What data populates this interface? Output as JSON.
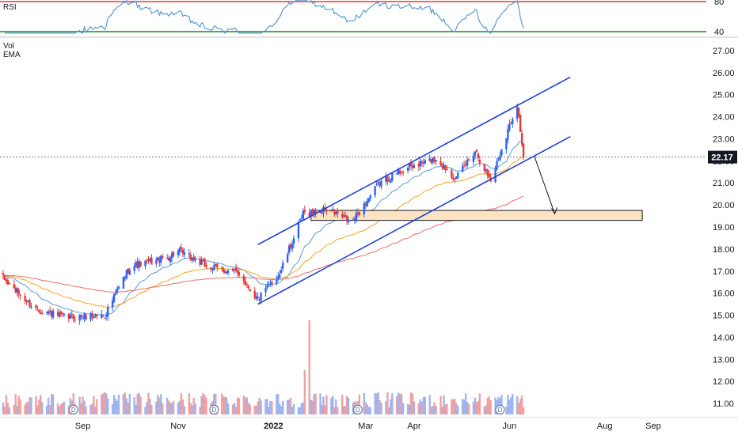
{
  "chart_data": {
    "type": "candlestick",
    "panes": {
      "rsi": {
        "label": "RSI",
        "ticks": [
          {
            "value": 80,
            "label": "80"
          },
          {
            "value": 40,
            "label": "40"
          }
        ],
        "upper_band": 80,
        "lower_band": 40,
        "ylim": [
          40,
          80
        ],
        "band_colors": {
          "upper": "#e53935",
          "lower": "#1b8a1b"
        },
        "line_color": "#5b9bd5"
      },
      "price": {
        "indicator_labels": [
          "Vol",
          "EMA"
        ],
        "y_ticks": [
          "27.00",
          "26.00",
          "25.00",
          "24.00",
          "23.00",
          "22.00",
          "21.00",
          "20.00",
          "19.00",
          "18.00",
          "17.00",
          "16.00",
          "15.00",
          "14.00",
          "13.00",
          "12.00",
          "11.00"
        ],
        "ylim": [
          10.5,
          27.5
        ],
        "last_price": "22.17",
        "last_price_value": 22.17,
        "x_labels": [
          {
            "label": "Sep",
            "date": "2021-09-01"
          },
          {
            "label": "Nov",
            "date": "2021-11-01"
          },
          {
            "label": "2022",
            "date": "2022-01-01",
            "bold": true
          },
          {
            "label": "Mar",
            "date": "2022-03-01"
          },
          {
            "label": "Apr",
            "date": "2022-04-01"
          },
          {
            "label": "Jun",
            "date": "2022-06-01"
          },
          {
            "label": "Aug",
            "date": "2022-08-01"
          },
          {
            "label": "Sep",
            "date": "2022-09-01"
          }
        ],
        "xlim": [
          "2021-07-10",
          "2022-10-05"
        ],
        "colors": {
          "up": "#2962ff",
          "down": "#e53935",
          "ema_short": "#5b9bd5",
          "ema_mid": "#f5a623",
          "ema_long": "#ef6c6c",
          "channel": "#1e3fd6",
          "zone_fill": "#fde3c0"
        },
        "ohlc_anchors": [
          {
            "date": "2021-07-10",
            "close": 16.8
          },
          {
            "date": "2021-08-01",
            "close": 15.3
          },
          {
            "date": "2021-08-20",
            "close": 14.9
          },
          {
            "date": "2021-09-15",
            "close": 15.0
          },
          {
            "date": "2021-10-01",
            "close": 17.2
          },
          {
            "date": "2021-10-25",
            "close": 17.6
          },
          {
            "date": "2021-11-01",
            "close": 17.9
          },
          {
            "date": "2021-11-20",
            "close": 17.2
          },
          {
            "date": "2021-12-10",
            "close": 16.9
          },
          {
            "date": "2021-12-22",
            "close": 15.7
          },
          {
            "date": "2022-01-05",
            "close": 16.9
          },
          {
            "date": "2022-01-20",
            "close": 19.6
          },
          {
            "date": "2022-02-05",
            "close": 19.8
          },
          {
            "date": "2022-02-20",
            "close": 19.2
          },
          {
            "date": "2022-03-10",
            "close": 21.0
          },
          {
            "date": "2022-03-25",
            "close": 21.6
          },
          {
            "date": "2022-04-15",
            "close": 22.1
          },
          {
            "date": "2022-04-28",
            "close": 21.2
          },
          {
            "date": "2022-05-10",
            "close": 22.5
          },
          {
            "date": "2022-05-20",
            "close": 21.1
          },
          {
            "date": "2022-06-01",
            "close": 23.6
          },
          {
            "date": "2022-06-06",
            "close": 24.6
          },
          {
            "date": "2022-06-10",
            "close": 22.17
          }
        ],
        "volume_spikes": [
          {
            "date": "2022-01-24",
            "volume_ratio": 3.4
          },
          {
            "date": "2022-01-21",
            "volume_ratio": 1.6
          }
        ],
        "dividend_marker_dates": [
          "2021-08-26",
          "2021-11-24",
          "2022-02-24",
          "2022-05-26"
        ],
        "dividend_marker_label": "D",
        "annotations": {
          "channel_upper": [
            {
              "date": "2021-12-22",
              "price": 18.2
            },
            {
              "date": "2022-07-10",
              "price": 25.8
            }
          ],
          "channel_lower": [
            {
              "date": "2021-12-22",
              "price": 15.5
            },
            {
              "date": "2022-07-10",
              "price": 23.1
            }
          ],
          "support_zone": {
            "from": "2022-01-25",
            "to": "2022-08-25",
            "top": 19.75,
            "bottom": 19.3
          },
          "arrow": [
            {
              "date": "2022-06-17",
              "price": 22.2
            },
            {
              "date": "2022-06-30",
              "price": 19.6
            }
          ]
        }
      }
    }
  }
}
